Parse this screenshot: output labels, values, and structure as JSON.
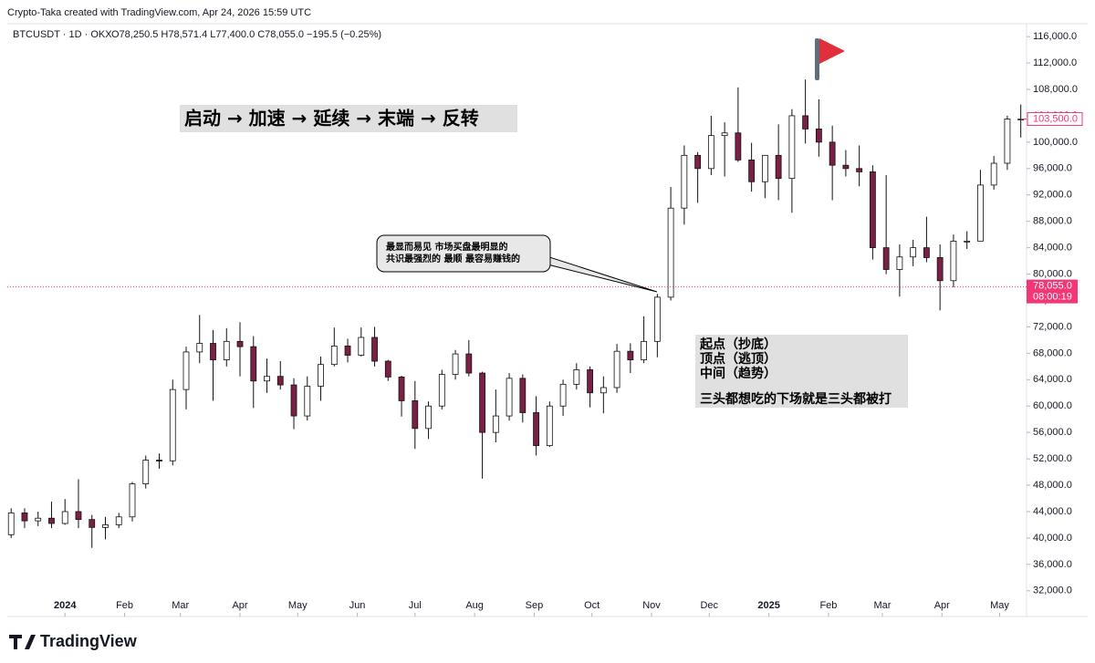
{
  "header": {
    "credit": "Crypto-Taka created with TradingView.com, Apr 24, 2026 15:59 UTC",
    "symbol": "BTCUSDT · 1D · OKX",
    "ohlc": "O78,250.5 H78,571.4 L77,400.0 C78,055.0 −195.5 (−0.25%)"
  },
  "annotations": {
    "phases": "启动 → 加速 → 延续 → 末端 → 反转",
    "callout": [
      "最显而易见 市场买盘最明显的",
      "共识最强烈的 最顺 最容易赚钱的"
    ],
    "box": [
      "起点（抄底）",
      "顶点（逃顶）",
      "中间（趋势）",
      "三头都想吃的下场就是三头都被打"
    ]
  },
  "footer": {
    "brand": "TradingView"
  },
  "chart_data": {
    "type": "candlestick",
    "up_color": "#ffffff",
    "down_color": "#7a1f45",
    "wick_color": "#111111",
    "x": [
      -28,
      -21,
      -14,
      -7,
      0,
      7,
      14,
      21,
      28,
      35,
      42,
      49,
      56,
      63,
      70,
      77,
      84,
      91,
      98,
      105,
      112,
      119,
      126,
      133,
      140,
      147,
      154,
      161,
      168,
      175,
      182,
      189,
      196,
      203,
      210,
      217,
      224,
      231,
      238,
      245,
      252,
      259,
      266,
      273,
      280,
      287,
      294,
      301,
      308,
      315,
      322,
      329,
      336,
      343,
      350,
      357,
      364,
      371,
      378,
      385,
      392,
      399,
      406,
      413,
      420,
      427,
      434,
      441,
      448,
      455,
      462,
      469,
      476,
      483,
      490,
      497
    ],
    "open": [
      40500,
      43800,
      42600,
      43000,
      42200,
      44000,
      42800,
      41600,
      42000,
      43200,
      48200,
      51800,
      51700,
      62500,
      68200,
      69500,
      67000,
      69800,
      69000,
      63800,
      64500,
      63200,
      58500,
      63000,
      66300,
      69100,
      67700,
      70400,
      66800,
      64400,
      60800,
      56600,
      60000,
      64800,
      67900,
      65000,
      56000,
      58500,
      64200,
      59000,
      54000,
      60000,
      63300,
      65500,
      62000,
      62800,
      68300,
      67000,
      69800,
      76500,
      90000,
      98000,
      96000,
      101000,
      101400,
      97300,
      94000,
      98000,
      94500,
      104000,
      102000,
      100000,
      96500,
      96000,
      95500,
      84000,
      80700,
      82600,
      84000,
      82500,
      79000,
      85000,
      85000,
      93500,
      96800,
      103500
    ],
    "high": [
      44500,
      44500,
      44000,
      45500,
      45900,
      48900,
      43500,
      43200,
      43800,
      48500,
      52500,
      52800,
      64000,
      69000,
      73800,
      71500,
      71800,
      72700,
      70600,
      67200,
      66800,
      64200,
      64500,
      67500,
      71900,
      70200,
      71900,
      72000,
      67000,
      64600,
      63800,
      60700,
      65500,
      68500,
      70000,
      65200,
      62500,
      65000,
      64800,
      61500,
      60700,
      64000,
      66500,
      66000,
      64500,
      69400,
      69500,
      73600,
      77000,
      93200,
      99500,
      98500,
      104000,
      103000,
      108300,
      99900,
      98000,
      102700,
      105000,
      109500,
      106500,
      102500,
      98800,
      99500,
      96500,
      95000,
      84500,
      85200,
      88700,
      84500,
      86000,
      86500,
      95800,
      97900,
      104000,
      105700
    ],
    "low": [
      40000,
      41500,
      41800,
      41500,
      42000,
      41500,
      38500,
      39800,
      41500,
      42500,
      47500,
      50500,
      51000,
      59500,
      66500,
      60800,
      66000,
      64500,
      59700,
      62000,
      62500,
      56500,
      57800,
      60800,
      66000,
      66600,
      67500,
      66000,
      63800,
      58400,
      53500,
      55000,
      59500,
      64000,
      64500,
      49000,
      54500,
      57800,
      57500,
      52500,
      53800,
      58500,
      62500,
      59800,
      58900,
      62000,
      65000,
      66500,
      67400,
      76000,
      87500,
      90800,
      95000,
      94800,
      97000,
      92500,
      91500,
      91200,
      89300,
      99800,
      97800,
      91200,
      94800,
      93300,
      82200,
      80000,
      76600,
      81200,
      81800,
      74500,
      78000,
      83800,
      85000,
      92800,
      95800,
      100700
    ],
    "close": [
      43800,
      42600,
      43000,
      42200,
      44000,
      42800,
      41600,
      42000,
      43200,
      48200,
      51800,
      51700,
      62500,
      68200,
      69500,
      67000,
      69800,
      69000,
      63800,
      64500,
      63200,
      58500,
      63000,
      66300,
      69100,
      67700,
      70400,
      66800,
      64400,
      60800,
      56600,
      60000,
      64800,
      67900,
      65000,
      56000,
      58500,
      64200,
      59000,
      54000,
      60000,
      63300,
      65500,
      62000,
      62800,
      68300,
      67000,
      69800,
      76500,
      90000,
      98000,
      96000,
      101000,
      101400,
      97300,
      94000,
      98000,
      94500,
      104000,
      102000,
      100000,
      96500,
      96000,
      95500,
      84000,
      80700,
      82600,
      84000,
      82500,
      79000,
      85000,
      85000,
      93500,
      96800,
      103500,
      103500
    ],
    "xlim": [
      -30,
      500
    ],
    "ylim": [
      28100,
      117400
    ],
    "xticks": [
      {
        "value": 0,
        "label": "2024"
      },
      {
        "value": 31,
        "label": "Feb"
      },
      {
        "value": 60,
        "label": "Mar"
      },
      {
        "value": 91,
        "label": "Apr"
      },
      {
        "value": 121,
        "label": "May"
      },
      {
        "value": 152,
        "label": "Jun"
      },
      {
        "value": 182,
        "label": "Jul"
      },
      {
        "value": 213,
        "label": "Aug"
      },
      {
        "value": 244,
        "label": "Sep"
      },
      {
        "value": 274,
        "label": "Oct"
      },
      {
        "value": 305,
        "label": "Nov"
      },
      {
        "value": 335,
        "label": "Dec"
      },
      {
        "value": 366,
        "label": "2025"
      },
      {
        "value": 397,
        "label": "Feb"
      },
      {
        "value": 425,
        "label": "Mar"
      },
      {
        "value": 456,
        "label": "Apr"
      },
      {
        "value": 486,
        "label": "May"
      }
    ],
    "yticks": [
      {
        "value": 32000,
        "label": "32,000.0"
      },
      {
        "value": 36000,
        "label": "36,000.0"
      },
      {
        "value": 40000,
        "label": "40,000.0"
      },
      {
        "value": 44000,
        "label": "44,000.0"
      },
      {
        "value": 48000,
        "label": "48,000.0"
      },
      {
        "value": 52000,
        "label": "52,000.0"
      },
      {
        "value": 56000,
        "label": "56,000.0"
      },
      {
        "value": 60000,
        "label": "60,000.0"
      },
      {
        "value": 64000,
        "label": "64,000.0"
      },
      {
        "value": 68000,
        "label": "68,000.0"
      },
      {
        "value": 72000,
        "label": "72,000.0"
      },
      {
        "value": 76000,
        "label": "76,000.0"
      },
      {
        "value": 80000,
        "label": "80,000.0"
      },
      {
        "value": 84000,
        "label": "84,000.0"
      },
      {
        "value": 88000,
        "label": "88,000.0"
      },
      {
        "value": 92000,
        "label": "92,000.0"
      },
      {
        "value": 96000,
        "label": "96,000.0"
      },
      {
        "value": 100000,
        "label": "100,000.0"
      },
      {
        "value": 104000,
        "label": "104,000.0"
      },
      {
        "value": 108000,
        "label": "108,000.0"
      },
      {
        "value": 112000,
        "label": "112,000.0"
      },
      {
        "value": 116000,
        "label": "116,000.0"
      }
    ],
    "last_price": {
      "value": 78055,
      "label": "78,055.0",
      "countdown": "08:00:19"
    },
    "hline": {
      "value": 103500,
      "label": "103,500.0"
    }
  }
}
